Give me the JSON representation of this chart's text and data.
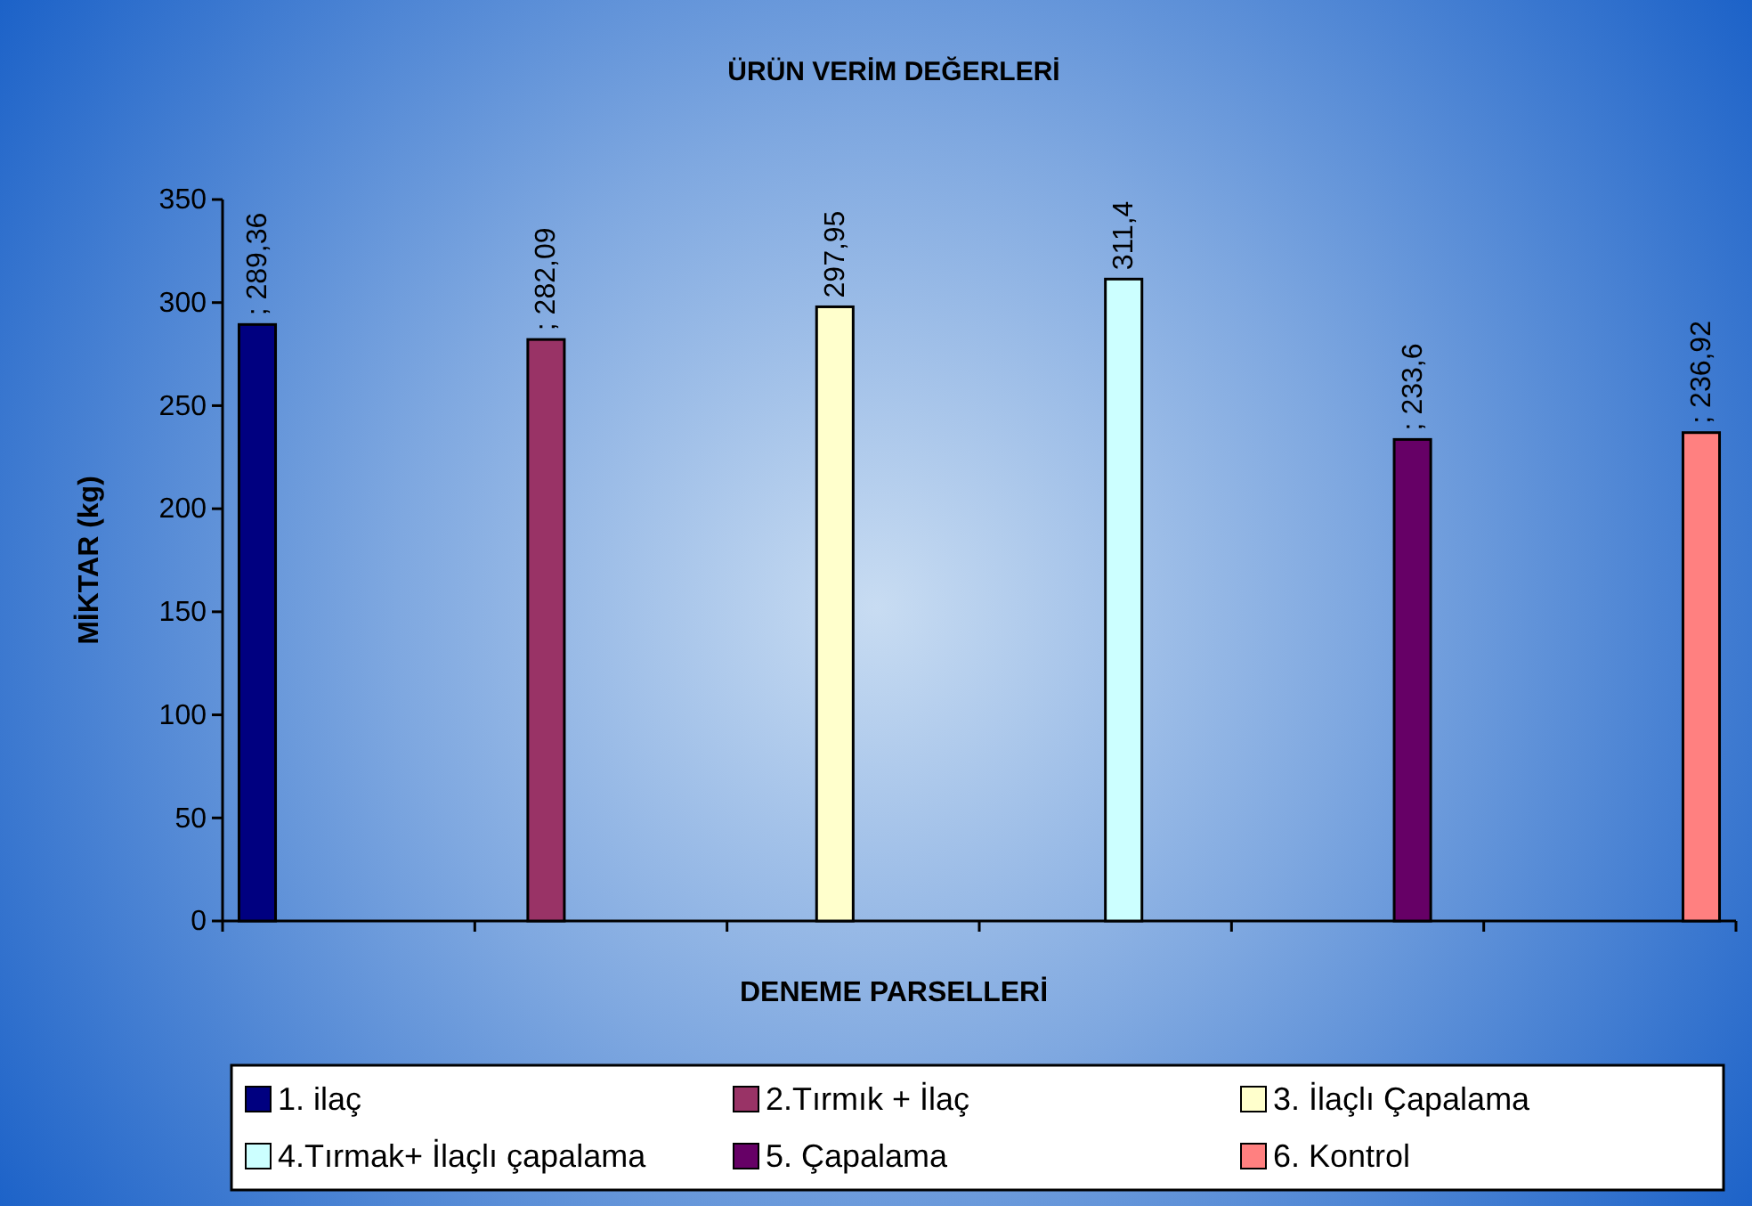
{
  "chart_data": {
    "type": "bar",
    "title": "ÜRÜN VERİM DEĞERLERİ",
    "xlabel": "DENEME PARSELLERİ",
    "ylabel": "MİKTAR (kg)",
    "categories": [
      null,
      null,
      null,
      null,
      null,
      null
    ],
    "series": [
      {
        "name": "1. ilaç",
        "color": "#000080",
        "values": [
          289.36,
          null,
          null,
          null,
          null,
          null
        ],
        "value_labels": [
          "; 289,36",
          null,
          null,
          null,
          null,
          null
        ]
      },
      {
        "name": "2.Tırmık + İlaç",
        "color": "#993366",
        "values": [
          null,
          282.09,
          null,
          null,
          null,
          null
        ],
        "value_labels": [
          null,
          "; 282,09",
          null,
          null,
          null,
          null
        ]
      },
      {
        "name": "3. İlaçlı Çapalama",
        "color": "#ffffcc",
        "values": [
          null,
          null,
          297.95,
          null,
          null,
          null
        ],
        "value_labels": [
          null,
          null,
          "297,95",
          null,
          null,
          null
        ]
      },
      {
        "name": "4.Tırmak+ İlaçlı çapalama",
        "color": "#ccffff",
        "values": [
          null,
          null,
          null,
          311.4,
          null,
          null
        ],
        "value_labels": [
          null,
          null,
          null,
          "311,4",
          null,
          null
        ]
      },
      {
        "name": "5. Çapalama",
        "color": "#660066",
        "values": [
          null,
          null,
          null,
          null,
          233.6,
          null
        ],
        "value_labels": [
          null,
          null,
          null,
          null,
          "; 233,6",
          null
        ]
      },
      {
        "name": "6. Kontrol",
        "color": "#ff8080",
        "values": [
          null,
          null,
          null,
          null,
          null,
          236.92
        ],
        "value_labels": [
          null,
          null,
          null,
          null,
          null,
          "; 236,92"
        ]
      }
    ],
    "ylim": [
      0,
      350
    ],
    "yticks": [
      0,
      50,
      100,
      150,
      200,
      250,
      300,
      350
    ],
    "grid": false,
    "legend": "bottom"
  }
}
